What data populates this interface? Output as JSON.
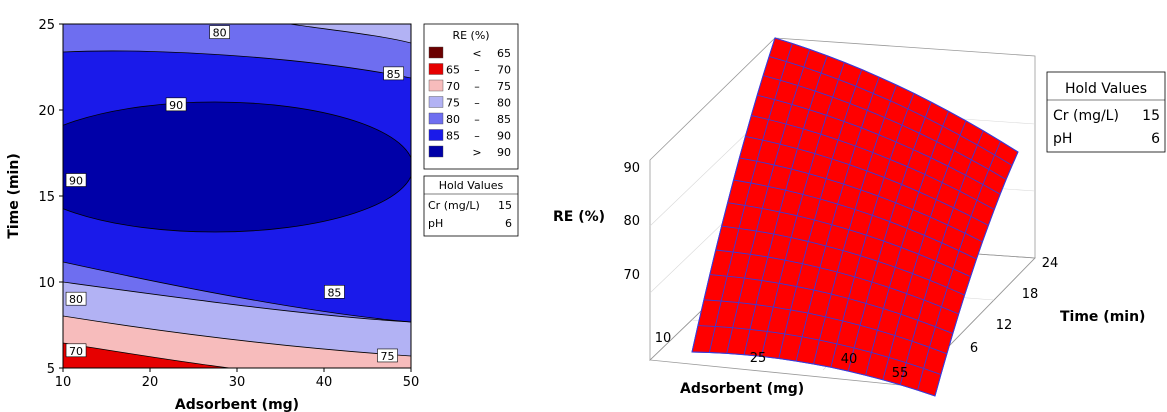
{
  "chart_data": [
    {
      "type": "contour",
      "xlabel": "Adsorbent (mg)",
      "ylabel": "Time (min)",
      "xlim": [
        10,
        50
      ],
      "ylim": [
        5,
        25
      ],
      "x_ticks": [
        "10",
        "20",
        "30",
        "40",
        "50"
      ],
      "y_ticks": [
        "5",
        "10",
        "15",
        "20",
        "25"
      ],
      "legend": {
        "title": "RE (%)",
        "entries": [
          {
            "op": "<",
            "lo": "",
            "hi": "65",
            "color": "#6b0000"
          },
          {
            "op": "–",
            "lo": "65",
            "hi": "70",
            "color": "#e60000"
          },
          {
            "op": "–",
            "lo": "70",
            "hi": "75",
            "color": "#f7bcbc"
          },
          {
            "op": "–",
            "lo": "75",
            "hi": "80",
            "color": "#b2b2f4"
          },
          {
            "op": "–",
            "lo": "80",
            "hi": "85",
            "color": "#6e6ef0"
          },
          {
            "op": "–",
            "lo": "85",
            "hi": "90",
            "color": "#1a1aea"
          },
          {
            "op": ">",
            "lo": "",
            "hi": "90",
            "color": "#0000a8"
          }
        ]
      },
      "contour_labels": [
        {
          "text": "80",
          "x": 28.0,
          "y": 24.5
        },
        {
          "text": "85",
          "x": 48.0,
          "y": 22.1
        },
        {
          "text": "90",
          "x": 23.0,
          "y": 20.3
        },
        {
          "text": "90",
          "x": 11.5,
          "y": 15.9
        },
        {
          "text": "85",
          "x": 41.2,
          "y": 9.4
        },
        {
          "text": "80",
          "x": 11.5,
          "y": 9.0
        },
        {
          "text": "75",
          "x": 47.3,
          "y": 5.7
        },
        {
          "text": "70",
          "x": 11.5,
          "y": 6.0
        }
      ],
      "hold_values": {
        "title": "Hold Values",
        "rows": [
          {
            "name": "Cr (mg/L)",
            "value": "15"
          },
          {
            "name": "pH",
            "value": "6"
          }
        ]
      }
    },
    {
      "type": "surface",
      "zlabel": "RE (%)",
      "xlabel": "Adsorbent (mg)",
      "ylabel": "Time (min)",
      "x_ticks": [
        "10",
        "25",
        "40",
        "55"
      ],
      "y_ticks": [
        "6",
        "12",
        "18",
        "24"
      ],
      "z_ticks": [
        "70",
        "80",
        "90"
      ],
      "surface_color": "#ff0000",
      "grid_color": "#3a3ad8",
      "hold_values": {
        "title": "Hold Values",
        "rows": [
          {
            "name": "Cr (mg/L)",
            "value": "15"
          },
          {
            "name": "pH",
            "value": "6"
          }
        ]
      }
    }
  ]
}
